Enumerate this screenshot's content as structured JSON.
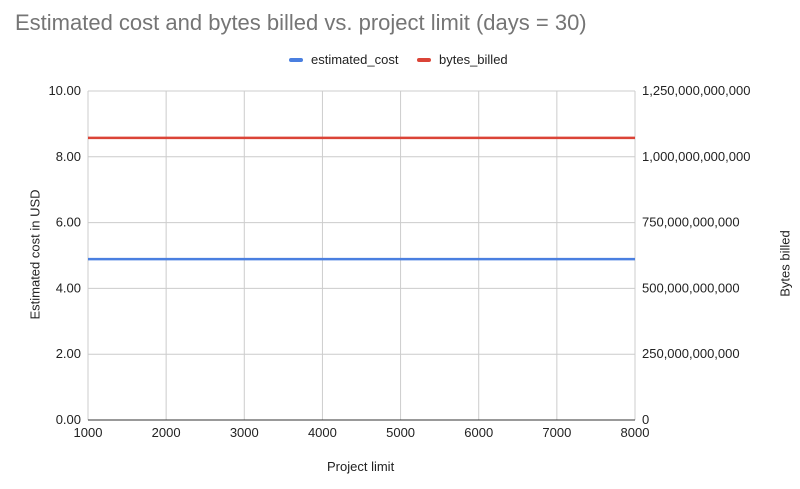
{
  "chart_data": {
    "type": "line",
    "title": "Estimated cost and bytes billed vs. project limit (days = 30)",
    "xlabel": "Project limit",
    "ylabel_left": "Estimated cost in USD",
    "ylabel_right": "Bytes billed",
    "x": [
      1000,
      2000,
      3000,
      4000,
      5000,
      6000,
      7000,
      8000
    ],
    "xlim": [
      1000,
      8000
    ],
    "x_ticks": [
      "1000",
      "2000",
      "3000",
      "4000",
      "5000",
      "6000",
      "7000",
      "8000"
    ],
    "ylim_left": [
      0,
      10
    ],
    "y_ticks_left": [
      "0.00",
      "2.00",
      "4.00",
      "6.00",
      "8.00",
      "10.00"
    ],
    "ylim_right": [
      0,
      1250000000000
    ],
    "y_ticks_right": [
      "0",
      "250,000,000,000",
      "500,000,000,000",
      "750,000,000,000",
      "1,000,000,000,000",
      "1,250,000,000,000"
    ],
    "grid": true,
    "legend_position": "top",
    "series": [
      {
        "name": "estimated_cost",
        "axis": "left",
        "color": "#4a7fe0",
        "values": [
          4.89,
          4.89,
          4.89,
          4.89,
          4.89,
          4.89,
          4.89,
          4.89
        ]
      },
      {
        "name": "bytes_billed",
        "axis": "right",
        "color": "#db4437",
        "values": [
          1072000000000,
          1072000000000,
          1072000000000,
          1072000000000,
          1072000000000,
          1072000000000,
          1072000000000,
          1072000000000
        ]
      }
    ]
  },
  "legend": [
    {
      "label": "estimated_cost",
      "color": "#4a7fe0"
    },
    {
      "label": "bytes_billed",
      "color": "#db4437"
    }
  ]
}
